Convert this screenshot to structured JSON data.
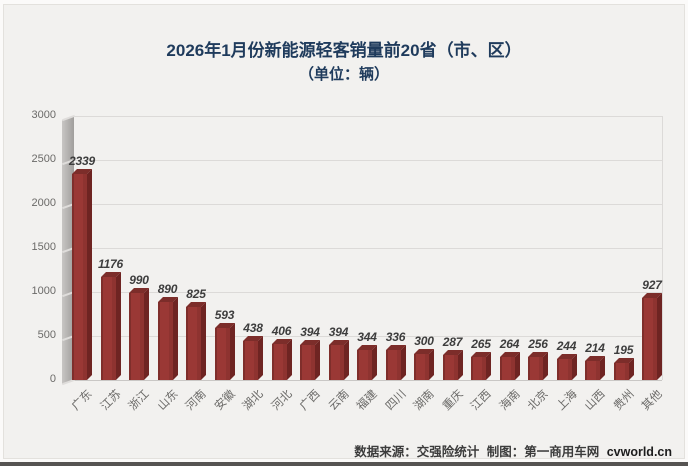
{
  "chart_data": {
    "type": "bar",
    "style": "3d-column",
    "title": "2026年1月份新能源轻客销量前20省（市、区）",
    "subtitle": "（单位：辆）",
    "unit": "辆",
    "categories": [
      "广东",
      "江苏",
      "浙江",
      "山东",
      "河南",
      "安徽",
      "湖北",
      "河北",
      "广西",
      "云南",
      "福建",
      "四川",
      "湖南",
      "重庆",
      "江西",
      "海南",
      "北京",
      "上海",
      "山西",
      "贵州",
      "其他"
    ],
    "values": [
      2339,
      1176,
      990,
      890,
      825,
      593,
      438,
      406,
      394,
      394,
      344,
      336,
      300,
      287,
      265,
      264,
      256,
      244,
      214,
      195,
      927
    ],
    "xlabel": "",
    "ylabel": "",
    "ylim": [
      0,
      3000
    ],
    "yticks": [
      0,
      500,
      1000,
      1500,
      2000,
      2500,
      3000
    ],
    "grid": true,
    "legend": false,
    "value_labels": true
  },
  "footer": {
    "source_label": "数据来源：交强险统计",
    "credit_label": "制图：第一商用车网",
    "brand": "cvworld.cn"
  },
  "colors": {
    "title": "#1f3b5c",
    "background": "#f2f1ef",
    "gridline": "#dcdad8",
    "axis_label": "#6b6a68",
    "value_label": "#3d3d3d",
    "bar_front": "#9a3835",
    "bar_side": "#6e2422",
    "bar_top": "#7c2d2a",
    "wall": "#b0aeac"
  }
}
